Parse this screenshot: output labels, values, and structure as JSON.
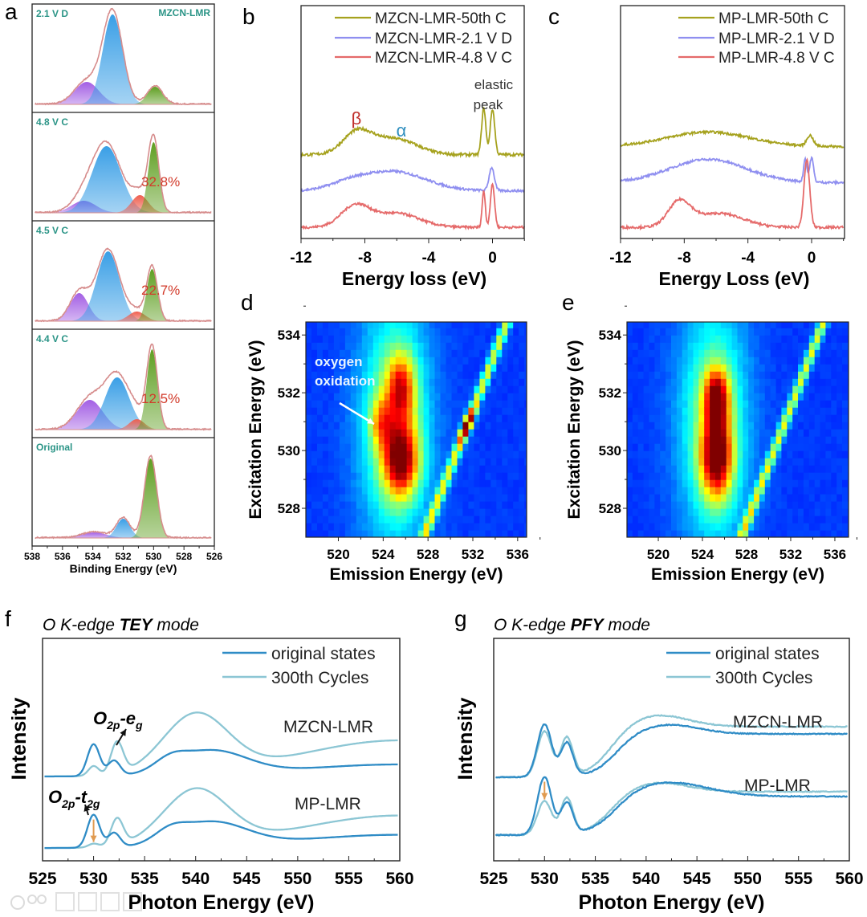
{
  "figure": {
    "watermark": "大数跨境"
  },
  "chart_data": [
    {
      "panel": "a",
      "type": "area",
      "title": "MZCN-LMR",
      "xlabel": "Binding Energy (eV)",
      "xlim": [
        538,
        526
      ],
      "xticks": [
        "538",
        "536",
        "534",
        "532",
        "530",
        "528",
        "526"
      ],
      "colors": {
        "purple": "#a35fe4",
        "blue": "#3a9fe6",
        "red": "#ef5f4f",
        "green": "#5f9f22",
        "envelope": "#d68c8c",
        "label": "#2a9486",
        "percent": "#d23a2a"
      },
      "subpanels": [
        {
          "label": "2.1 V D",
          "percent": null,
          "components": [
            {
              "color": "purple",
              "center": 534.4,
              "amp": 0.28,
              "sigma": 0.8
            },
            {
              "color": "blue",
              "center": 532.7,
              "amp": 1.12,
              "sigma": 0.65
            },
            {
              "color": "green",
              "center": 529.9,
              "amp": 0.22,
              "sigma": 0.5
            }
          ]
        },
        {
          "label": "4.8 V C",
          "percent": "32.8%",
          "components": [
            {
              "color": "purple",
              "center": 534.6,
              "amp": 0.15,
              "sigma": 0.8
            },
            {
              "color": "blue",
              "center": 533.1,
              "amp": 0.83,
              "sigma": 0.95
            },
            {
              "color": "red",
              "center": 530.9,
              "amp": 0.22,
              "sigma": 0.55
            },
            {
              "color": "green",
              "center": 530.0,
              "amp": 0.88,
              "sigma": 0.35
            }
          ]
        },
        {
          "label": "4.5 V C",
          "percent": "22.7%",
          "components": [
            {
              "color": "purple",
              "center": 534.9,
              "amp": 0.35,
              "sigma": 0.6
            },
            {
              "color": "blue",
              "center": 533.0,
              "amp": 0.87,
              "sigma": 0.75
            },
            {
              "color": "red",
              "center": 531.1,
              "amp": 0.12,
              "sigma": 0.55
            },
            {
              "color": "green",
              "center": 530.1,
              "amp": 0.65,
              "sigma": 0.35
            }
          ]
        },
        {
          "label": "4.4 V C",
          "percent": "12.5%",
          "components": [
            {
              "color": "purple",
              "center": 534.2,
              "amp": 0.37,
              "sigma": 0.85
            },
            {
              "color": "blue",
              "center": 532.4,
              "amp": 0.65,
              "sigma": 0.8
            },
            {
              "color": "red",
              "center": 531.1,
              "amp": 0.13,
              "sigma": 0.5
            },
            {
              "color": "green",
              "center": 530.1,
              "amp": 1.0,
              "sigma": 0.35
            }
          ]
        },
        {
          "label": "Original",
          "percent": null,
          "components": [
            {
              "color": "purple",
              "center": 533.9,
              "amp": 0.07,
              "sigma": 0.8
            },
            {
              "color": "blue",
              "center": 532.0,
              "amp": 0.24,
              "sigma": 0.45
            },
            {
              "color": "green",
              "center": 530.2,
              "amp": 0.99,
              "sigma": 0.4
            }
          ]
        }
      ]
    },
    {
      "panel": "b",
      "type": "line",
      "xlabel": "Energy loss (eV)",
      "xlim": [
        -12,
        2
      ],
      "xticks": [
        "-12",
        "-8",
        "-4",
        "0"
      ],
      "xtick_values": [
        -12,
        -8,
        -4,
        0
      ],
      "legend": "top-right",
      "annotations": {
        "beta": "β",
        "alpha": "α",
        "elastic_1": "elastic",
        "elastic_2": "peak"
      },
      "annotation_colors": {
        "beta": "#c0302c",
        "alpha": "#2f8fbf"
      },
      "series": [
        {
          "name": "MZCN-LMR-50th C",
          "color": "#a6a21e",
          "baseline": 3.6,
          "noise": 0.06,
          "peaks": [
            [
              -8.5,
              0.9,
              0.9
            ],
            [
              -5.6,
              0.45,
              1.2
            ],
            [
              -7.0,
              0.35,
              1.2
            ],
            [
              -0.55,
              2.0,
              0.13
            ],
            [
              0.0,
              1.95,
              0.14
            ]
          ]
        },
        {
          "name": "MZCN-LMR-2.1 V D",
          "color": "#8f8ff0",
          "baseline": 2.05,
          "noise": 0.05,
          "peaks": [
            [
              -6.2,
              0.82,
              2.0
            ],
            [
              -9,
              0.25,
              1.2
            ],
            [
              -0.05,
              1.0,
              0.16
            ]
          ]
        },
        {
          "name": "MZCN-LMR-4.8 V C",
          "color": "#e56a6a",
          "baseline": 0.48,
          "noise": 0.05,
          "peaks": [
            [
              -8.6,
              0.9,
              0.9
            ],
            [
              -6.0,
              0.6,
              1.4
            ],
            [
              -0.55,
              1.55,
              0.1
            ],
            [
              0.0,
              1.85,
              0.13
            ]
          ]
        }
      ]
    },
    {
      "panel": "c",
      "type": "line",
      "xlabel": "Energy Loss (eV)",
      "xlim": [
        -12,
        2
      ],
      "xticks": [
        "-12",
        "-8",
        "-4",
        "0"
      ],
      "xtick_values": [
        -12,
        -8,
        -4,
        0
      ],
      "legend": "top-right",
      "series": [
        {
          "name": "MP-LMR-50th C",
          "color": "#a6a21e",
          "baseline": 3.95,
          "noise": 0.05,
          "peaks": [
            [
              -6.5,
              0.62,
              2.6
            ],
            [
              -0.1,
              0.45,
              0.2
            ]
          ]
        },
        {
          "name": "MP-LMR-2.1 V D",
          "color": "#8f8ff0",
          "baseline": 2.4,
          "noise": 0.05,
          "peaks": [
            [
              -6.5,
              1.0,
              2.4
            ],
            [
              -0.4,
              1.0,
              0.1
            ],
            [
              0.0,
              1.05,
              0.12
            ]
          ]
        },
        {
          "name": "MP-LMR-4.8 V C",
          "color": "#e56a6a",
          "baseline": 0.48,
          "noise": 0.05,
          "peaks": [
            [
              -8.3,
              1.05,
              0.7
            ],
            [
              -5.8,
              0.6,
              1.5
            ],
            [
              -0.3,
              2.9,
              0.18
            ]
          ]
        }
      ]
    },
    {
      "panel": "d",
      "type": "heatmap",
      "xlabel": "Emission Energy (eV)",
      "ylabel": "Excitation Energy (eV)",
      "xlim": [
        517.1,
        536.8
      ],
      "ylim": [
        527.0,
        534.45
      ],
      "xticks": [
        "520",
        "524",
        "528",
        "532",
        "536"
      ],
      "xtick_values": [
        520,
        524,
        528,
        532,
        536
      ],
      "yticks": [
        "528",
        "530",
        "532",
        "534"
      ],
      "ytick_values": [
        528,
        530,
        532,
        534
      ],
      "colormap": "jet",
      "emission_step": 0.5,
      "excitation_step": 0.25,
      "annotation": {
        "line1": "oxygen",
        "line2": "oxidation"
      },
      "background": 0.18,
      "blobs": [
        {
          "emission": 525.0,
          "excitation": 531.0,
          "amp": 0.35,
          "s_em": 2.2,
          "s_ex": 3.0
        },
        {
          "emission": 525.6,
          "excitation": 529.7,
          "amp": 0.62,
          "s_em": 1.1,
          "s_ex": 0.9
        },
        {
          "emission": 525.6,
          "excitation": 532.2,
          "amp": 0.45,
          "s_em": 0.9,
          "s_ex": 0.8
        },
        {
          "emission": 523.8,
          "excitation": 531.0,
          "amp": 0.28,
          "s_em": 0.7,
          "s_ex": 0.6
        }
      ],
      "elastic": {
        "offset": 0.6,
        "amp": 0.42,
        "width": 0.3,
        "hotspot_excitation": 530.9,
        "hotspot_amp": 0.5,
        "hotspot_width": 0.4
      }
    },
    {
      "panel": "e",
      "type": "heatmap",
      "xlabel": "Emission Energy (eV)",
      "ylabel": "Excitation Energy (eV)",
      "xlim": [
        517.16,
        537.24
      ],
      "ylim": [
        527.0,
        534.45
      ],
      "xticks": [
        "520",
        "524",
        "528",
        "532",
        "536"
      ],
      "xtick_values": [
        520,
        524,
        528,
        532,
        536
      ],
      "yticks": [
        "528",
        "530",
        "532",
        "534"
      ],
      "ytick_values": [
        528,
        530,
        532,
        534
      ],
      "colormap": "jet",
      "emission_step": 0.5,
      "excitation_step": 0.25,
      "background": 0.18,
      "blobs": [
        {
          "emission": 525.0,
          "excitation": 531.0,
          "amp": 0.33,
          "s_em": 2.2,
          "s_ex": 3.0
        },
        {
          "emission": 525.3,
          "excitation": 529.8,
          "amp": 0.66,
          "s_em": 1.0,
          "s_ex": 1.0
        },
        {
          "emission": 525.3,
          "excitation": 531.9,
          "amp": 0.55,
          "s_em": 0.8,
          "s_ex": 0.7
        }
      ],
      "elastic": {
        "offset": 0.5,
        "amp": 0.42,
        "width": 0.3,
        "hotspot_excitation": null,
        "hotspot_amp": 0,
        "hotspot_width": 1
      }
    },
    {
      "panel": "f",
      "type": "line",
      "title": {
        "pre": "O K-edge ",
        "bold": "TEY",
        "post": " mode"
      },
      "xlabel": "Photon Energy (eV)",
      "ylabel": "Intensity",
      "xlim": [
        525,
        560
      ],
      "xticks": [
        "525",
        "530",
        "535",
        "540",
        "545",
        "550",
        "555",
        "560"
      ],
      "xtick_values": [
        525,
        530,
        535,
        540,
        545,
        550,
        555,
        560
      ],
      "legend": "top-right",
      "legend_entries": [
        {
          "name": "original states",
          "color": "#2f8cc6"
        },
        {
          "name": "300th Cycles",
          "color": "#8cc6d4"
        }
      ],
      "sample_labels": [
        "MZCN-LMR",
        "MP-LMR"
      ],
      "annotations": {
        "eg": {
          "O": "O",
          "sub1": "2p",
          "dash": "-",
          "e": "e",
          "sub2": "g"
        },
        "t2g": {
          "O": "O",
          "sub1": "2p",
          "dash": "-",
          "e": "t",
          "sub2": "2g"
        }
      },
      "arrow_color": "#e09a50",
      "series": [
        {
          "name": "MZCN-LMR original states",
          "color": "#2f8cc6",
          "baseline": 3.5,
          "noise": 0.0,
          "peaks": [
            [
              530,
              1.33,
              0.6
            ],
            [
              532,
              0.63,
              0.6
            ],
            [
              537.5,
              0.4,
              1.5
            ],
            [
              541.5,
              1.0,
              3.5
            ],
            [
              560,
              0.5,
              10
            ]
          ]
        },
        {
          "name": "MZCN-LMR 300th Cycles",
          "color": "#8cc6d4",
          "baseline": 3.5,
          "noise": 0.0,
          "peaks": [
            [
              530,
              0.4,
              0.5
            ],
            [
              532.3,
              1.3,
              0.6
            ],
            [
              540,
              2.45,
              3.2
            ],
            [
              560,
              1.5,
              10
            ]
          ]
        },
        {
          "name": "MP-LMR original states",
          "color": "#2f8cc6",
          "baseline": 0.53,
          "noise": 0.0,
          "peaks": [
            [
              530,
              1.37,
              0.6
            ],
            [
              532,
              0.6,
              0.6
            ],
            [
              537.5,
              0.4,
              1.5
            ],
            [
              541.5,
              1.0,
              3.5
            ],
            [
              560,
              0.55,
              10
            ]
          ]
        },
        {
          "name": "MP-LMR 300th Cycles",
          "color": "#8cc6d4",
          "baseline": 0.53,
          "noise": 0.0,
          "peaks": [
            [
              530,
              0.15,
              0.5
            ],
            [
              532.3,
              1.1,
              0.6
            ],
            [
              540,
              2.3,
              3.2
            ],
            [
              560,
              1.35,
              10
            ]
          ]
        }
      ]
    },
    {
      "panel": "g",
      "type": "line",
      "title": {
        "pre": "O K-edge ",
        "bold": "PFY",
        "post": " mode"
      },
      "xlabel": "Photon Energy (eV)",
      "ylabel": "Intensity",
      "xlim": [
        525,
        560
      ],
      "xticks": [
        "525",
        "530",
        "535",
        "540",
        "545",
        "550",
        "555",
        "560"
      ],
      "xtick_values": [
        525,
        530,
        535,
        540,
        545,
        550,
        555,
        560
      ],
      "legend": "top-right",
      "legend_entries": [
        {
          "name": "original states",
          "color": "#2f8cc6"
        },
        {
          "name": "300th Cycles",
          "color": "#8cc6d4"
        }
      ],
      "sample_labels": [
        "MZCN-LMR",
        "MP-LMR"
      ],
      "arrow_color": "#e09a50",
      "series": [
        {
          "name": "MZCN-LMR original states",
          "color": "#2f8cc6",
          "baseline": 3.47,
          "noise": 0.02,
          "peaks": [
            [
              530,
              2.2,
              0.7
            ],
            [
              532.2,
              1.4,
              0.6
            ],
            [
              542,
              0.4,
              3
            ]
          ],
          "steps": [
            [
              537,
              1.8,
              1.2
            ]
          ]
        },
        {
          "name": "MZCN-LMR 300th Cycles",
          "color": "#8cc6d4",
          "baseline": 3.47,
          "noise": 0.02,
          "peaks": [
            [
              530,
              1.9,
              0.7
            ],
            [
              532.2,
              1.6,
              0.6
            ],
            [
              541,
              0.5,
              3
            ]
          ],
          "steps": [
            [
              536.5,
              2.1,
              1.2
            ]
          ]
        },
        {
          "name": "MP-LMR original states",
          "color": "#2f8cc6",
          "baseline": 1.07,
          "noise": 0.02,
          "peaks": [
            [
              530,
              2.4,
              0.7
            ],
            [
              532.2,
              1.3,
              0.6
            ],
            [
              542,
              0.6,
              4
            ]
          ],
          "steps": [
            [
              537,
              1.6,
              1.2
            ]
          ]
        },
        {
          "name": "MP-LMR 300th Cycles",
          "color": "#8cc6d4",
          "baseline": 1.07,
          "noise": 0.02,
          "peaks": [
            [
              530,
              1.4,
              0.7
            ],
            [
              532.2,
              1.5,
              0.6
            ],
            [
              541,
              0.4,
              3
            ]
          ],
          "steps": [
            [
              536.5,
              1.8,
              1.2
            ]
          ]
        }
      ]
    }
  ],
  "panel_letters": [
    "a",
    "b",
    "c",
    "d",
    "e",
    "f",
    "g"
  ]
}
